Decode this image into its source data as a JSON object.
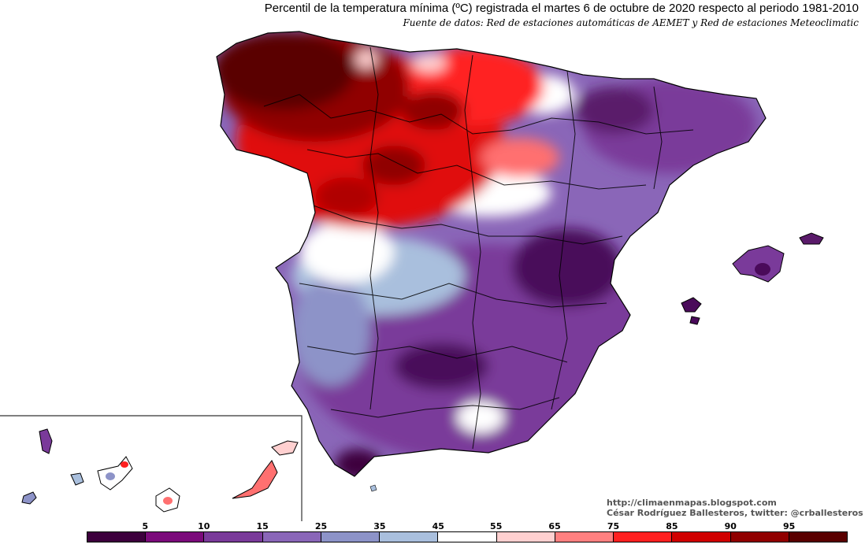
{
  "title": "Percentil de la temperatura mínima (ºC) registrada el martes 6 de octubre de 2020 respecto al periodo 1981-2010",
  "subtitle": "Fuente de datos: Red de estaciones automáticas de AEMET y Red de estaciones Meteoclimatic",
  "credits": {
    "url": "http://climaenmapas.blogspot.com",
    "author": "César Rodríguez Ballesteros, twitter: @crballesteros"
  },
  "legend": {
    "labels": [
      "5",
      "10",
      "15",
      "25",
      "35",
      "45",
      "55",
      "65",
      "75",
      "85",
      "90",
      "95"
    ],
    "colors": [
      "#3d003d",
      "#7b0a7b",
      "#7a3a9a",
      "#8a66b8",
      "#8d93c8",
      "#a9bfdd",
      "#ffffff",
      "#ffd0d0",
      "#ff8080",
      "#ff2020",
      "#d00000",
      "#900000",
      "#5a0000"
    ]
  },
  "palette": {
    "dark_red": "#5a0000",
    "red": "#e01010",
    "light_red": "#ff7070",
    "white": "#ffffff",
    "light_blue": "#a9bfdd",
    "purple": "#7a3a9a",
    "dark_purple": "#4a0a5a"
  }
}
